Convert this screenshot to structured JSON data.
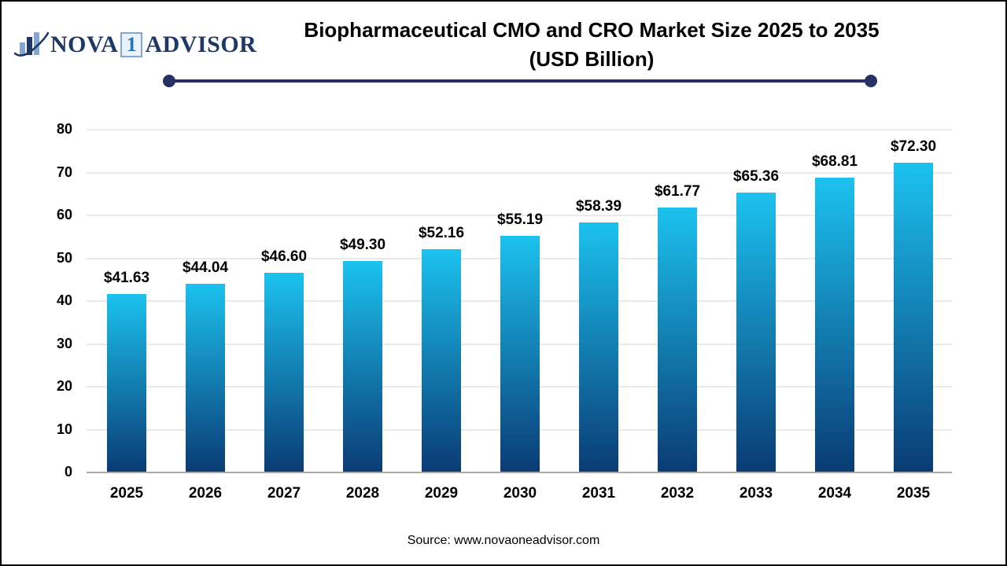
{
  "logo": {
    "part1": "NOVA",
    "boxed": "1",
    "part2": "ADVISOR"
  },
  "title": {
    "line1": "Biopharmaceutical CMO and CRO Market Size 2025 to 2035",
    "line2": "(USD Billion)"
  },
  "source": "Source: www.novaoneadvisor.com",
  "colors": {
    "logo-navy": "#1f3864",
    "logo-blue": "#7fa8d8",
    "divider-navy": "#283064",
    "grid-color": "#e9e9e9",
    "axis-color": "#a9a9a9",
    "bar-top": "#1cc2ef",
    "bar-bottom": "#0a3b74"
  },
  "chart_data": {
    "type": "bar",
    "title": "Biopharmaceutical CMO and CRO Market Size 2025 to 2035 (USD Billion)",
    "categories": [
      "2025",
      "2026",
      "2027",
      "2028",
      "2029",
      "2030",
      "2031",
      "2032",
      "2033",
      "2034",
      "2035"
    ],
    "values": [
      41.63,
      44.04,
      46.6,
      49.3,
      52.16,
      55.19,
      58.39,
      61.77,
      65.36,
      68.81,
      72.3
    ],
    "bar_labels": [
      "$41.63",
      "$44.04",
      "$46.60",
      "$49.30",
      "$52.16",
      "$55.19",
      "$58.39",
      "$61.77",
      "$65.36",
      "$68.81",
      "$72.30"
    ],
    "xlabel": "",
    "ylabel": "",
    "ylim": [
      0,
      80
    ],
    "yticks": [
      0,
      10,
      20,
      30,
      40,
      50,
      60,
      70,
      80
    ],
    "grid": true,
    "legend": false,
    "bar_gradient": [
      "#1cc2ef",
      "#0a3b74"
    ]
  }
}
